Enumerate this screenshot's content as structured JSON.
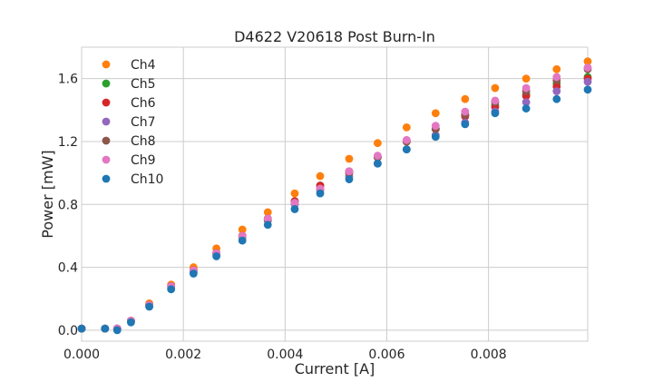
{
  "chart_data": {
    "type": "scatter",
    "title": "D4622 V20618 Post Burn-In",
    "xlabel": "Current [A]",
    "ylabel": "Power [mW]",
    "xlim": [
      0.0,
      0.00995
    ],
    "ylim": [
      -0.07,
      1.8
    ],
    "xticks": [
      0.0,
      0.002,
      0.004,
      0.006,
      0.008
    ],
    "xtick_labels": [
      "0.000",
      "0.002",
      "0.004",
      "0.006",
      "0.008"
    ],
    "yticks": [
      0.0,
      0.4,
      0.8,
      1.2,
      1.6
    ],
    "ytick_labels": [
      "0.0",
      "0.4",
      "0.8",
      "1.2",
      "1.6"
    ],
    "grid": true,
    "legend_position": "top-left",
    "x": [
      0.0,
      0.00046,
      0.0007,
      0.00097,
      0.00133,
      0.00176,
      0.0022,
      0.00265,
      0.00316,
      0.00366,
      0.00419,
      0.00469,
      0.00526,
      0.00582,
      0.00639,
      0.00696,
      0.00754,
      0.00813,
      0.00874,
      0.00934,
      0.00995
    ],
    "series": [
      {
        "name": "Ch4",
        "color": "#ff7f0e",
        "values": [
          0.01,
          0.01,
          0.01,
          0.06,
          0.17,
          0.29,
          0.4,
          0.52,
          0.64,
          0.75,
          0.87,
          0.98,
          1.09,
          1.19,
          1.29,
          1.38,
          1.47,
          1.54,
          1.6,
          1.66,
          1.71
        ]
      },
      {
        "name": "Ch5",
        "color": "#2ca02c",
        "values": [
          0.01,
          0.01,
          0.01,
          0.06,
          0.16,
          0.28,
          0.38,
          0.49,
          0.6,
          0.71,
          0.82,
          0.92,
          1.01,
          1.1,
          1.2,
          1.28,
          1.37,
          1.43,
          1.5,
          1.57,
          1.61
        ]
      },
      {
        "name": "Ch6",
        "color": "#d62728",
        "values": [
          0.01,
          0.01,
          0.01,
          0.06,
          0.16,
          0.28,
          0.38,
          0.49,
          0.6,
          0.71,
          0.82,
          0.92,
          1.01,
          1.1,
          1.2,
          1.28,
          1.36,
          1.42,
          1.49,
          1.55,
          1.6
        ]
      },
      {
        "name": "Ch7",
        "color": "#9467bd",
        "values": [
          0.01,
          0.01,
          0.01,
          0.06,
          0.15,
          0.27,
          0.37,
          0.48,
          0.59,
          0.7,
          0.8,
          0.89,
          0.98,
          1.06,
          1.15,
          1.24,
          1.32,
          1.39,
          1.45,
          1.52,
          1.58
        ]
      },
      {
        "name": "Ch8",
        "color": "#8c564b",
        "values": [
          0.01,
          0.01,
          0.01,
          0.06,
          0.16,
          0.28,
          0.38,
          0.49,
          0.6,
          0.7,
          0.81,
          0.9,
          1.0,
          1.1,
          1.2,
          1.28,
          1.37,
          1.45,
          1.52,
          1.59,
          1.66
        ]
      },
      {
        "name": "Ch9",
        "color": "#e377c2",
        "values": [
          0.01,
          0.01,
          0.01,
          0.06,
          0.16,
          0.28,
          0.38,
          0.49,
          0.6,
          0.71,
          0.81,
          0.9,
          1.01,
          1.11,
          1.21,
          1.3,
          1.39,
          1.46,
          1.54,
          1.61,
          1.67
        ]
      },
      {
        "name": "Ch10",
        "color": "#1f77b4",
        "values": [
          0.01,
          0.01,
          0.0,
          0.05,
          0.15,
          0.26,
          0.36,
          0.47,
          0.57,
          0.67,
          0.77,
          0.87,
          0.96,
          1.06,
          1.15,
          1.23,
          1.31,
          1.38,
          1.41,
          1.47,
          1.53
        ]
      }
    ]
  }
}
